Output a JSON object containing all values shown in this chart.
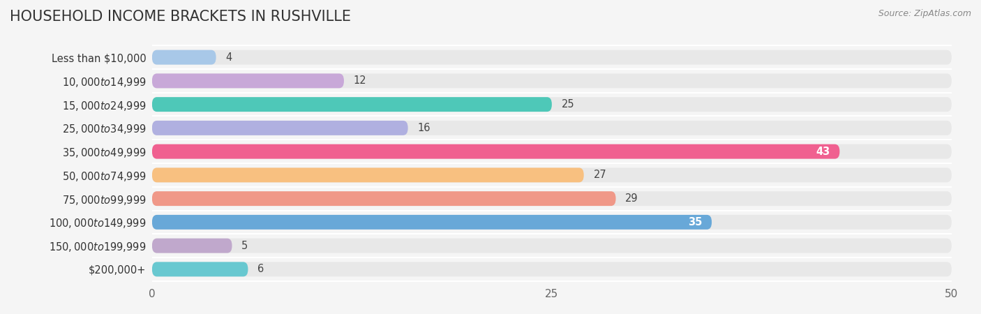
{
  "title": "HOUSEHOLD INCOME BRACKETS IN RUSHVILLE",
  "source": "Source: ZipAtlas.com",
  "categories": [
    "Less than $10,000",
    "$10,000 to $14,999",
    "$15,000 to $24,999",
    "$25,000 to $34,999",
    "$35,000 to $49,999",
    "$50,000 to $74,999",
    "$75,000 to $99,999",
    "$100,000 to $149,999",
    "$150,000 to $199,999",
    "$200,000+"
  ],
  "values": [
    4,
    12,
    25,
    16,
    43,
    27,
    29,
    35,
    5,
    6
  ],
  "bar_colors": [
    "#a8c8e8",
    "#c8a8d8",
    "#4ec8b8",
    "#b0b0e0",
    "#f06090",
    "#f8c080",
    "#f09888",
    "#68a8d8",
    "#c0a8cc",
    "#68c8d0"
  ],
  "value_inside_white": [
    43,
    35
  ],
  "xlim": [
    0,
    50
  ],
  "xticks": [
    0,
    25,
    50
  ],
  "background_color": "#f5f5f5",
  "bar_background_color": "#e8e8e8",
  "title_fontsize": 15,
  "label_fontsize": 10.5,
  "value_fontsize": 10.5,
  "tick_fontsize": 11
}
